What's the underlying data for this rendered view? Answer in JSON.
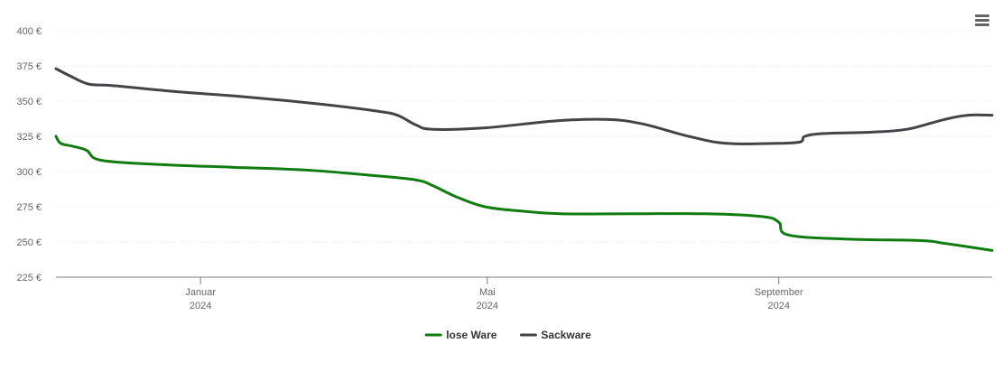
{
  "chart_data": {
    "type": "line",
    "title": "",
    "xlabel": "",
    "ylabel": "",
    "y_unit": "€",
    "ylim": [
      225,
      400
    ],
    "yticks": [
      225,
      250,
      275,
      300,
      325,
      350,
      375,
      400
    ],
    "ytick_labels": [
      "225 €",
      "250 €",
      "275 €",
      "300 €",
      "325 €",
      "350 €",
      "375 €",
      "400 €"
    ],
    "xlim": [
      "2023-11-01",
      "2024-11-30"
    ],
    "xticks": [
      {
        "date": "2024-01-01",
        "label_line1": "Januar",
        "label_line2": "2024"
      },
      {
        "date": "2024-05-01",
        "label_line1": "Mai",
        "label_line2": "2024"
      },
      {
        "date": "2024-09-01",
        "label_line1": "September",
        "label_line2": "2024"
      }
    ],
    "grid": true,
    "legend": "bottom",
    "series": [
      {
        "name": "lose Ware",
        "color": "#107c10",
        "points": [
          [
            "2023-11-01",
            325
          ],
          [
            "2023-11-03",
            320
          ],
          [
            "2023-11-08",
            318
          ],
          [
            "2023-11-14",
            315
          ],
          [
            "2023-11-20",
            308
          ],
          [
            "2023-12-15",
            305
          ],
          [
            "2024-01-15",
            303
          ],
          [
            "2024-02-15",
            301
          ],
          [
            "2024-03-15",
            297
          ],
          [
            "2024-04-01",
            294
          ],
          [
            "2024-04-08",
            290
          ],
          [
            "2024-04-18",
            282
          ],
          [
            "2024-04-30",
            275
          ],
          [
            "2024-05-15",
            272
          ],
          [
            "2024-06-01",
            270
          ],
          [
            "2024-07-01",
            270
          ],
          [
            "2024-08-01",
            270
          ],
          [
            "2024-08-25",
            268
          ],
          [
            "2024-09-01",
            264
          ],
          [
            "2024-09-05",
            255
          ],
          [
            "2024-09-30",
            252
          ],
          [
            "2024-10-31",
            251
          ],
          [
            "2024-11-10",
            249
          ],
          [
            "2024-11-30",
            244
          ]
        ]
      },
      {
        "name": "Sackware",
        "color": "#434348",
        "points": [
          [
            "2023-11-01",
            373
          ],
          [
            "2023-11-08",
            367
          ],
          [
            "2023-11-15",
            362
          ],
          [
            "2023-11-25",
            361
          ],
          [
            "2023-12-20",
            357
          ],
          [
            "2024-01-20",
            353
          ],
          [
            "2024-02-20",
            348
          ],
          [
            "2024-03-15",
            343
          ],
          [
            "2024-03-24",
            340
          ],
          [
            "2024-04-01",
            333
          ],
          [
            "2024-04-08",
            330
          ],
          [
            "2024-04-30",
            331
          ],
          [
            "2024-05-30",
            336
          ],
          [
            "2024-06-20",
            337
          ],
          [
            "2024-07-05",
            334
          ],
          [
            "2024-07-25",
            325
          ],
          [
            "2024-08-10",
            320
          ],
          [
            "2024-08-31",
            320
          ],
          [
            "2024-09-10",
            321
          ],
          [
            "2024-09-12",
            325
          ],
          [
            "2024-09-20",
            327
          ],
          [
            "2024-10-10",
            328
          ],
          [
            "2024-10-25",
            330
          ],
          [
            "2024-11-10",
            337
          ],
          [
            "2024-11-20",
            340
          ],
          [
            "2024-11-30",
            340
          ]
        ]
      }
    ]
  },
  "toolbar": {
    "menu_icon": "hamburger-menu-icon"
  }
}
